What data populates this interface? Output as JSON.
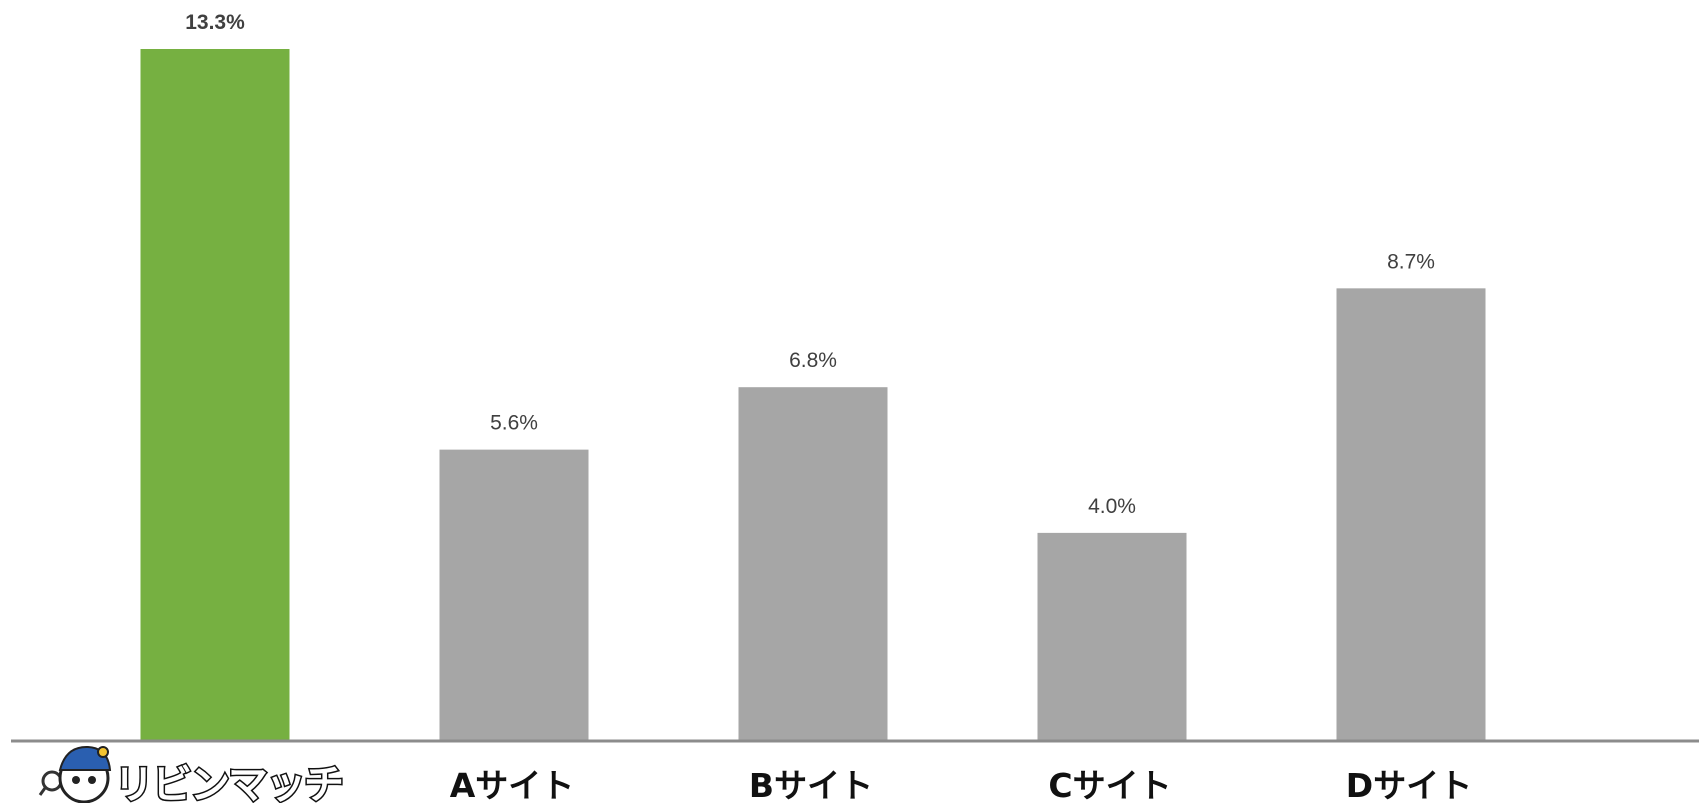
{
  "chart_data": {
    "type": "bar",
    "categories": [
      "リビンマッチ",
      "Aサイト",
      "Bサイト",
      "Cサイト",
      "Dサイト"
    ],
    "values": [
      13.3,
      5.6,
      6.8,
      4.0,
      8.7
    ],
    "value_labels": [
      "13.3%",
      "5.6%",
      "6.8%",
      "4.0%",
      "8.7%"
    ],
    "unit": "%",
    "ylim": [
      0,
      13.3
    ],
    "grid": false,
    "legend": "none",
    "colors": {
      "highlight": "#76b041",
      "default": "#a6a6a6",
      "axis": "#8c8c8c"
    },
    "highlight_index": 0
  },
  "logo": {
    "text": "リビンマッチ",
    "icon": "mascot-magnifier-icon"
  }
}
